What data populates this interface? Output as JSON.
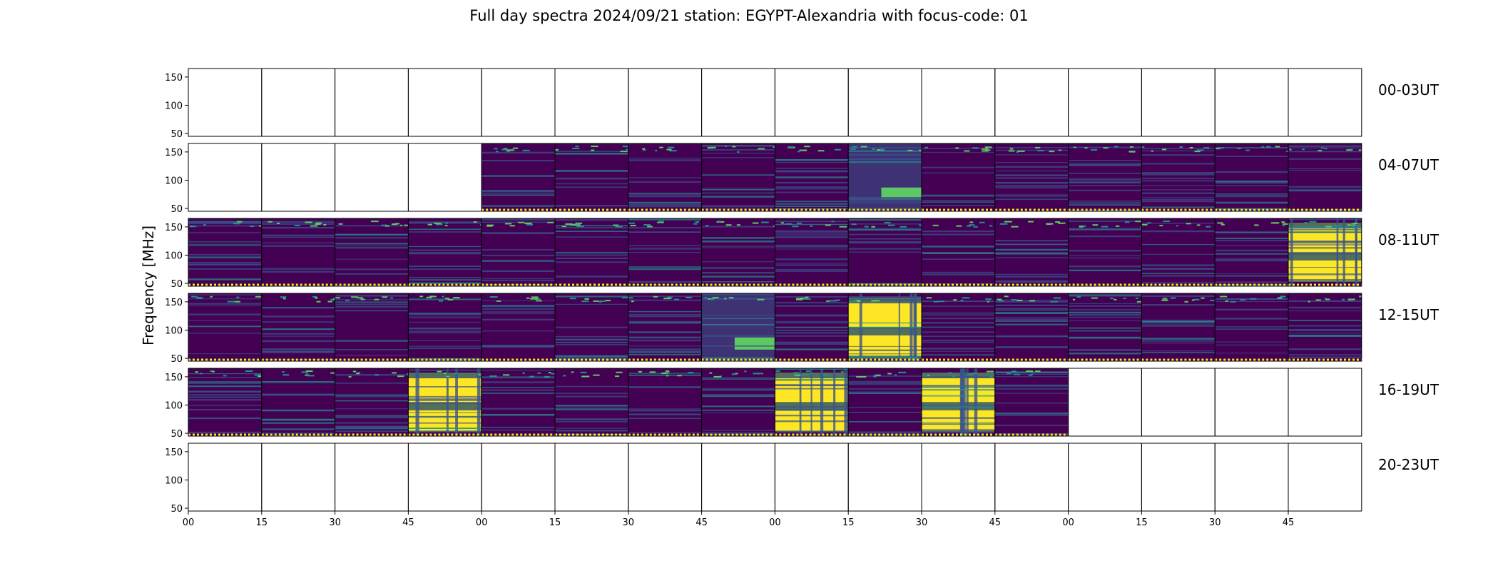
{
  "chart_data": {
    "type": "heatmap",
    "title": "Full day spectra 2024/09/21 station: EGYPT-Alexandria with focus-code: 01",
    "ylabel": "Frequency [MHz]",
    "xlabel": "",
    "ylim": [
      45,
      165
    ],
    "yticks": [
      "150",
      "100",
      "50"
    ],
    "xticks": [
      "00",
      "15",
      "30",
      "45",
      "00",
      "15",
      "30",
      "45",
      "00",
      "15",
      "30",
      "45",
      "00",
      "15",
      "30",
      "45"
    ],
    "row_labels": [
      "00-03UT",
      "04-07UT",
      "08-11UT",
      "12-15UT",
      "16-19UT",
      "20-23UT"
    ],
    "colormap": [
      "#440154",
      "#3b528b",
      "#21918c",
      "#5ec962",
      "#fde725"
    ],
    "panel_coverage": [
      [
        0,
        0,
        0,
        0,
        0,
        0,
        0,
        0,
        0,
        0,
        0,
        0,
        0,
        0,
        0,
        0
      ],
      [
        0,
        0,
        0,
        0,
        1,
        1,
        1,
        1,
        1,
        1,
        1,
        1,
        1,
        1,
        1,
        1
      ],
      [
        1,
        1,
        1,
        1,
        1,
        1,
        1,
        1,
        1,
        1,
        1,
        1,
        1,
        1,
        1,
        1
      ],
      [
        1,
        1,
        1,
        1,
        1,
        1,
        1,
        1,
        1,
        1,
        1,
        1,
        1,
        1,
        1,
        1
      ],
      [
        1,
        1,
        1,
        1,
        1,
        1,
        1,
        1,
        1,
        1,
        1,
        1,
        0,
        0,
        0,
        0
      ],
      [
        0,
        0,
        0,
        0,
        0,
        0,
        0,
        0,
        0,
        0,
        0,
        0,
        0,
        0,
        0,
        0
      ]
    ],
    "burst_panels": [
      {
        "row": 1,
        "col": 9,
        "intensity": "moderate"
      },
      {
        "row": 2,
        "col": 15,
        "intensity": "strong"
      },
      {
        "row": 3,
        "col": 7,
        "intensity": "moderate"
      },
      {
        "row": 3,
        "col": 9,
        "intensity": "strong"
      },
      {
        "row": 4,
        "col": 3,
        "intensity": "strong"
      },
      {
        "row": 4,
        "col": 8,
        "intensity": "strong"
      },
      {
        "row": 4,
        "col": 10,
        "intensity": "strong"
      }
    ]
  }
}
